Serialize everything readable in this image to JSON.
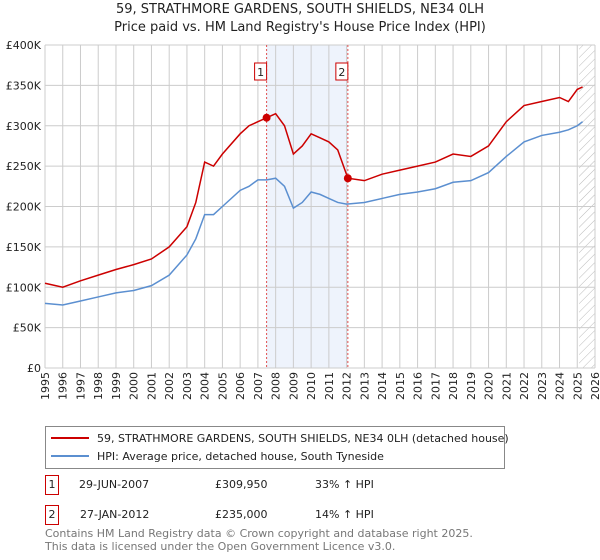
{
  "chart_data": {
    "type": "line",
    "title": "59, STRATHMORE GARDENS, SOUTH SHIELDS, NE34 0LH",
    "subtitle": "Price paid vs. HM Land Registry's House Price Index (HPI)",
    "xlim": [
      1995,
      2026
    ],
    "ylim": [
      0,
      400000
    ],
    "xticks": [
      "1995",
      "1996",
      "1997",
      "1998",
      "1999",
      "2000",
      "2001",
      "2002",
      "2003",
      "2004",
      "2005",
      "2006",
      "2007",
      "2008",
      "2009",
      "2010",
      "2011",
      "2012",
      "2013",
      "2014",
      "2015",
      "2016",
      "2017",
      "2018",
      "2019",
      "2020",
      "2021",
      "2022",
      "2023",
      "2024",
      "2025",
      "2026"
    ],
    "yticks": [
      {
        "v": 0,
        "l": "£0"
      },
      {
        "v": 50000,
        "l": "£50K"
      },
      {
        "v": 100000,
        "l": "£100K"
      },
      {
        "v": 150000,
        "l": "£150K"
      },
      {
        "v": 200000,
        "l": "£200K"
      },
      {
        "v": 250000,
        "l": "£250K"
      },
      {
        "v": 300000,
        "l": "£300K"
      },
      {
        "v": 350000,
        "l": "£350K"
      },
      {
        "v": 400000,
        "l": "£400K"
      }
    ],
    "series": [
      {
        "name": "59, STRATHMORE GARDENS, SOUTH SHIELDS, NE34 0LH (detached house)",
        "color": "#cc0000",
        "x": [
          1995,
          1996,
          1997,
          1998,
          1999,
          2000,
          2001,
          2002,
          2003,
          2003.5,
          2004,
          2004.5,
          2005,
          2006,
          2006.5,
          2007,
          2007.5,
          2008,
          2008.5,
          2009,
          2009.5,
          2010,
          2010.5,
          2011,
          2011.5,
          2012.07,
          2013,
          2014,
          2015,
          2016,
          2017,
          2018,
          2019,
          2020,
          2021,
          2022,
          2023,
          2024,
          2024.5,
          2025,
          2025.3
        ],
        "y": [
          105000,
          100000,
          108000,
          115000,
          122000,
          128000,
          135000,
          150000,
          175000,
          205000,
          255000,
          250000,
          265000,
          290000,
          300000,
          305000,
          309950,
          315000,
          300000,
          265000,
          275000,
          290000,
          285000,
          280000,
          270000,
          235000,
          232000,
          240000,
          245000,
          250000,
          255000,
          265000,
          262000,
          275000,
          305000,
          325000,
          330000,
          335000,
          330000,
          345000,
          348000
        ]
      },
      {
        "name": "HPI: Average price, detached house, South Tyneside",
        "color": "#5b8fd0",
        "x": [
          1995,
          1996,
          1997,
          1998,
          1999,
          2000,
          2001,
          2002,
          2003,
          2003.5,
          2004,
          2004.5,
          2005,
          2006,
          2006.5,
          2007,
          2007.5,
          2008,
          2008.5,
          2009,
          2009.5,
          2010,
          2010.5,
          2011,
          2011.5,
          2012,
          2013,
          2014,
          2015,
          2016,
          2017,
          2018,
          2019,
          2020,
          2021,
          2022,
          2023,
          2024,
          2024.5,
          2025,
          2025.3
        ],
        "y": [
          80000,
          78000,
          83000,
          88000,
          93000,
          96000,
          102000,
          115000,
          140000,
          160000,
          190000,
          190000,
          200000,
          220000,
          225000,
          233000,
          233000,
          235000,
          225000,
          198000,
          205000,
          218000,
          215000,
          210000,
          205000,
          203000,
          205000,
          210000,
          215000,
          218000,
          222000,
          230000,
          232000,
          242000,
          262000,
          280000,
          288000,
          292000,
          295000,
          300000,
          305000
        ]
      }
    ],
    "sales": [
      {
        "label": "1",
        "x": 2007.49,
        "y": 309950
      },
      {
        "label": "2",
        "x": 2012.07,
        "y": 235000
      }
    ],
    "forecast_from": 2025.1
  },
  "legend": {
    "red": "59, STRATHMORE GARDENS, SOUTH SHIELDS, NE34 0LH (detached house)",
    "blue": "HPI: Average price, detached house, South Tyneside"
  },
  "transactions": [
    {
      "num": "1",
      "date": "29-JUN-2007",
      "price": "£309,950",
      "hpi": "33% ↑ HPI"
    },
    {
      "num": "2",
      "date": "27-JAN-2012",
      "price": "£235,000",
      "hpi": "14% ↑ HPI"
    }
  ],
  "footer": {
    "line1": "Contains HM Land Registry data © Crown copyright and database right 2025.",
    "line2": "This data is licensed under the Open Government Licence v3.0."
  }
}
